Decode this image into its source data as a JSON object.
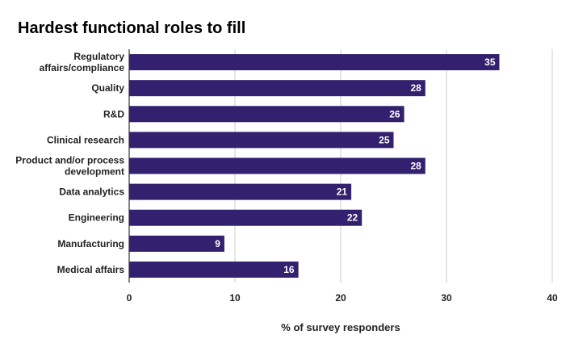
{
  "chart_data": {
    "type": "bar",
    "orientation": "horizontal",
    "title": "Hardest functional roles to fill",
    "xlabel": "% of survey responders",
    "ylabel": "",
    "xlim": [
      0,
      40
    ],
    "xticks": [
      "0",
      "10",
      "20",
      "30",
      "40"
    ],
    "grid": true,
    "categories": [
      [
        "Regulatory",
        "affairs/compliance"
      ],
      [
        "Quality"
      ],
      [
        "R&D"
      ],
      [
        "Clinical research"
      ],
      [
        "Product and/or process",
        "development"
      ],
      [
        "Data analytics"
      ],
      [
        "Engineering"
      ],
      [
        "Manufacturing"
      ],
      [
        "Medical affairs"
      ]
    ],
    "values": [
      35,
      28,
      26,
      25,
      28,
      21,
      22,
      9,
      16
    ],
    "colors": {
      "bar": "#33206e",
      "grid": "#cccccc",
      "axis": "#333333"
    }
  }
}
